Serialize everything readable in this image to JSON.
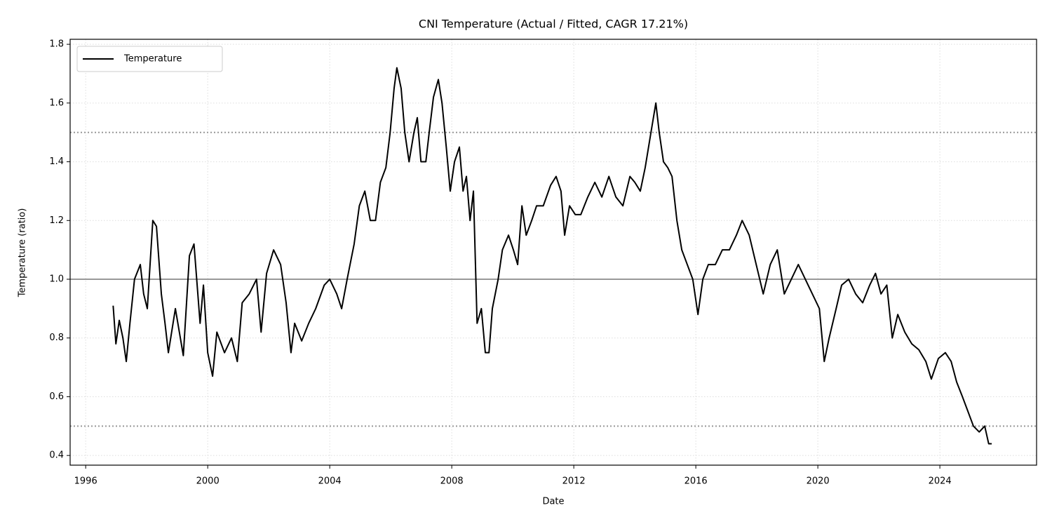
{
  "chart_data": {
    "type": "line",
    "title": "CNI Temperature (Actual / Fitted, CAGR 17.21%)",
    "x_label": "Date",
    "y_label": "Temperature (ratio)",
    "x": [
      1996.9,
      1996.99,
      1997.1,
      1997.22,
      1997.33,
      1997.45,
      1997.6,
      1997.79,
      1997.9,
      1998.02,
      1998.2,
      1998.32,
      1998.48,
      1998.6,
      1998.71,
      1998.94,
      1999.2,
      1999.4,
      1999.55,
      1999.75,
      1999.86,
      2000.0,
      2000.16,
      2000.3,
      2000.55,
      2000.78,
      2000.97,
      2001.13,
      2001.36,
      2001.6,
      2001.75,
      2001.93,
      2002.16,
      2002.39,
      2002.57,
      2002.73,
      2002.85,
      2003.08,
      2003.31,
      2003.54,
      2003.82,
      2004.0,
      2004.23,
      2004.39,
      2004.57,
      2004.8,
      2004.97,
      2005.15,
      2005.33,
      2005.5,
      2005.66,
      2005.84,
      2005.98,
      2006.11,
      2006.2,
      2006.34,
      2006.46,
      2006.6,
      2006.76,
      2006.87,
      2006.99,
      2007.15,
      2007.26,
      2007.4,
      2007.56,
      2007.68,
      2007.82,
      2007.95,
      2008.09,
      2008.25,
      2008.37,
      2008.48,
      2008.6,
      2008.71,
      2008.83,
      2008.97,
      2009.1,
      2009.22,
      2009.33,
      2009.52,
      2009.66,
      2009.86,
      2010.02,
      2010.16,
      2010.3,
      2010.44,
      2010.62,
      2010.78,
      2011.0,
      2011.24,
      2011.42,
      2011.58,
      2011.7,
      2011.86,
      2012.05,
      2012.23,
      2012.46,
      2012.69,
      2012.92,
      2013.15,
      2013.38,
      2013.61,
      2013.84,
      2014.0,
      2014.18,
      2014.34,
      2014.53,
      2014.69,
      2014.8,
      2014.94,
      2015.08,
      2015.22,
      2015.38,
      2015.54,
      2015.72,
      2015.9,
      2016.07,
      2016.23,
      2016.41,
      2016.64,
      2016.87,
      2017.1,
      2017.33,
      2017.52,
      2017.75,
      2017.98,
      2018.21,
      2018.44,
      2018.67,
      2018.9,
      2019.13,
      2019.36,
      2019.59,
      2019.82,
      2020.05,
      2020.21,
      2020.37,
      2020.6,
      2020.78,
      2021.01,
      2021.24,
      2021.47,
      2021.7,
      2021.89,
      2022.07,
      2022.26,
      2022.44,
      2022.62,
      2022.85,
      2023.08,
      2023.31,
      2023.54,
      2023.72,
      2023.95,
      2024.18,
      2024.37,
      2024.55,
      2024.74,
      2024.92,
      2025.1,
      2025.29,
      2025.47,
      2025.6,
      2025.7
    ],
    "series": [
      {
        "name": "Temperature",
        "color": "#000000",
        "values": [
          0.91,
          0.78,
          0.86,
          0.8,
          0.72,
          0.85,
          1.0,
          1.05,
          0.95,
          0.9,
          1.2,
          1.18,
          0.95,
          0.85,
          0.75,
          0.9,
          0.74,
          1.08,
          1.12,
          0.85,
          0.98,
          0.75,
          0.67,
          0.82,
          0.75,
          0.8,
          0.72,
          0.92,
          0.95,
          1.0,
          0.82,
          1.02,
          1.1,
          1.05,
          0.92,
          0.75,
          0.85,
          0.79,
          0.85,
          0.9,
          0.98,
          1.0,
          0.95,
          0.9,
          1.0,
          1.12,
          1.25,
          1.3,
          1.2,
          1.2,
          1.33,
          1.38,
          1.5,
          1.65,
          1.72,
          1.65,
          1.5,
          1.4,
          1.5,
          1.55,
          1.4,
          1.4,
          1.5,
          1.62,
          1.68,
          1.6,
          1.45,
          1.3,
          1.4,
          1.45,
          1.3,
          1.35,
          1.2,
          1.3,
          0.85,
          0.9,
          0.75,
          0.75,
          0.9,
          1.0,
          1.1,
          1.15,
          1.1,
          1.05,
          1.25,
          1.15,
          1.2,
          1.25,
          1.25,
          1.32,
          1.35,
          1.3,
          1.15,
          1.25,
          1.22,
          1.22,
          1.28,
          1.33,
          1.28,
          1.35,
          1.28,
          1.25,
          1.35,
          1.33,
          1.3,
          1.38,
          1.5,
          1.6,
          1.5,
          1.4,
          1.38,
          1.35,
          1.2,
          1.1,
          1.05,
          1.0,
          0.88,
          1.0,
          1.05,
          1.05,
          1.1,
          1.1,
          1.15,
          1.2,
          1.15,
          1.05,
          0.95,
          1.05,
          1.1,
          0.95,
          1.0,
          1.05,
          1.0,
          0.95,
          0.9,
          0.72,
          0.8,
          0.9,
          0.98,
          1.0,
          0.95,
          0.92,
          0.98,
          1.02,
          0.95,
          0.98,
          0.8,
          0.88,
          0.82,
          0.78,
          0.76,
          0.72,
          0.66,
          0.73,
          0.75,
          0.72,
          0.65,
          0.6,
          0.55,
          0.5,
          0.48,
          0.5,
          0.44,
          0.44
        ]
      }
    ],
    "xlim": [
      1995.49,
      2027.17
    ],
    "ylim": [
      0.367,
      1.817
    ],
    "xticks": [
      1996,
      2000,
      2004,
      2008,
      2012,
      2016,
      2020,
      2024
    ],
    "yticks": [
      0.4,
      0.6,
      0.8,
      {
        "value": 1,
        "label": "1.0"
      },
      1.2,
      1.4,
      1.6,
      1.8
    ],
    "reference_lines": [
      {
        "value": 1,
        "color": "#999999",
        "style": "solid"
      },
      {
        "value": 1.5,
        "color": "#999999",
        "style": "dotted"
      },
      {
        "value": 0.5,
        "color": "#999999",
        "style": "dotted"
      }
    ],
    "grid": true,
    "legend": "upper left"
  }
}
